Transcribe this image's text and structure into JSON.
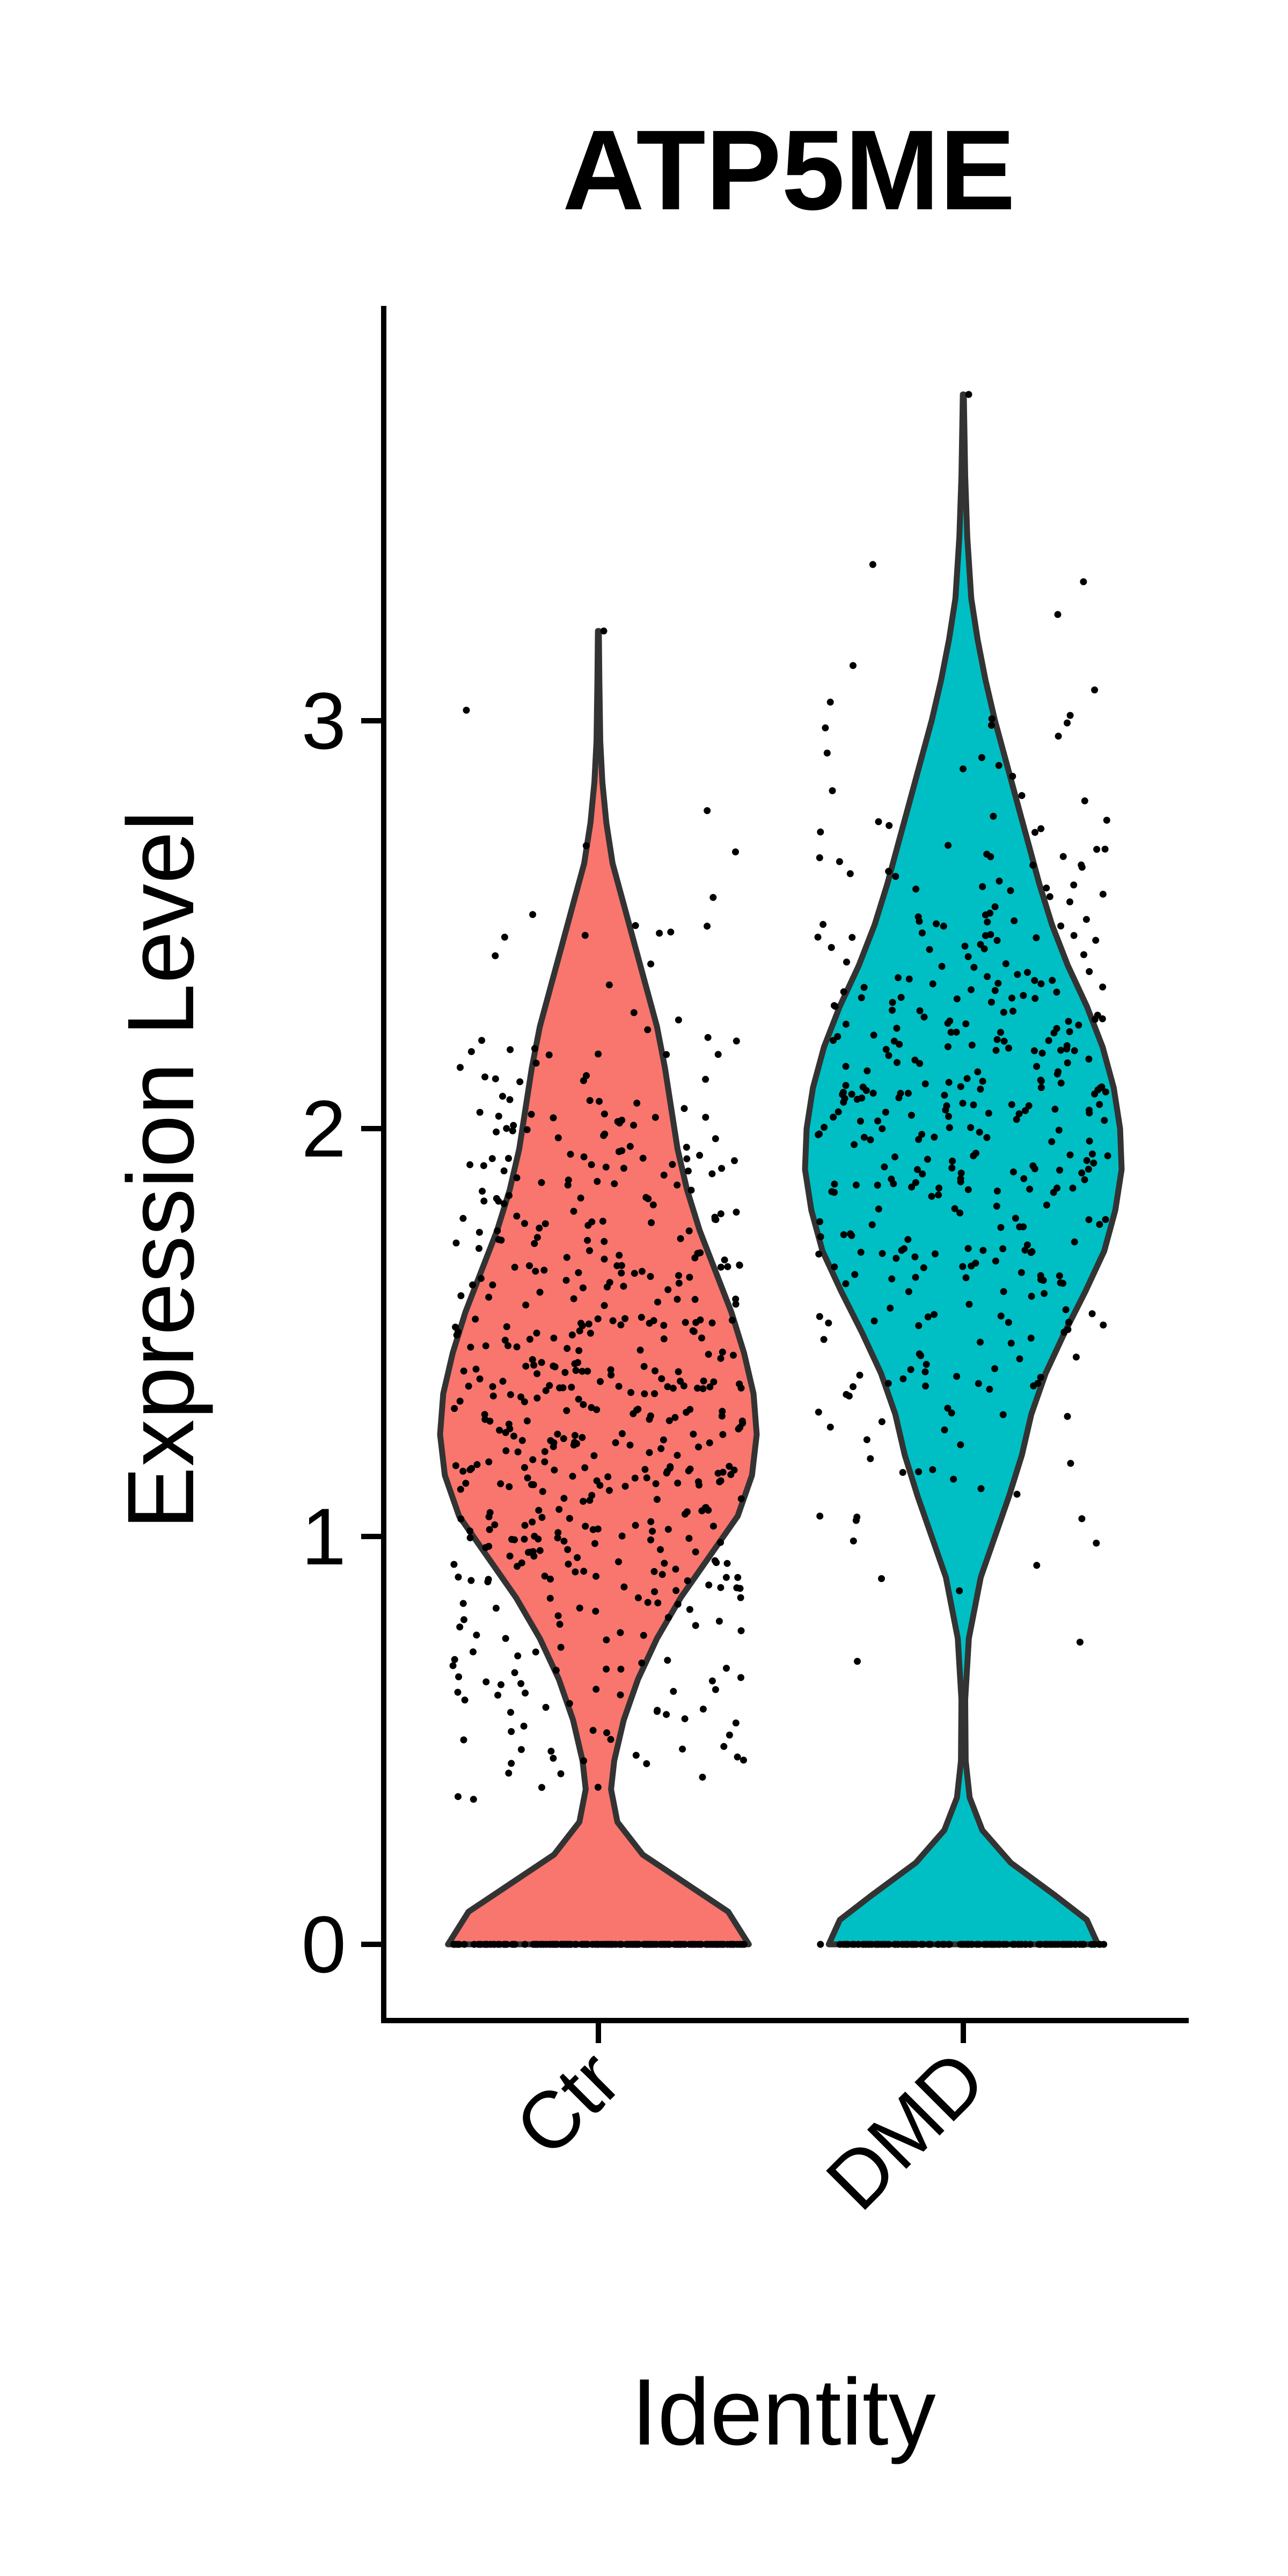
{
  "chart_data": {
    "type": "violin",
    "title": "ATP5ME",
    "xlabel": "Identity",
    "ylabel": "Expression Level",
    "categories": [
      "Ctr",
      "DMD"
    ],
    "yticks": [
      0,
      1,
      2,
      3
    ],
    "ylim": [
      -0.18,
      3.95
    ],
    "grid": false,
    "legend": "none",
    "jitter_points": true,
    "series": [
      {
        "category": "Ctr",
        "color": "#F8766D",
        "min": 0,
        "max": 3.22,
        "n_points": 700,
        "zero_fraction": 0.22,
        "density": [
          [
            0.0,
            0.95
          ],
          [
            0.08,
            0.82
          ],
          [
            0.15,
            0.55
          ],
          [
            0.22,
            0.28
          ],
          [
            0.3,
            0.12
          ],
          [
            0.38,
            0.08
          ],
          [
            0.45,
            0.1
          ],
          [
            0.55,
            0.16
          ],
          [
            0.65,
            0.25
          ],
          [
            0.75,
            0.37
          ],
          [
            0.85,
            0.52
          ],
          [
            0.95,
            0.7
          ],
          [
            1.05,
            0.88
          ],
          [
            1.15,
            0.97
          ],
          [
            1.25,
            1.0
          ],
          [
            1.35,
            0.98
          ],
          [
            1.45,
            0.92
          ],
          [
            1.55,
            0.84
          ],
          [
            1.65,
            0.74
          ],
          [
            1.75,
            0.64
          ],
          [
            1.85,
            0.56
          ],
          [
            1.95,
            0.5
          ],
          [
            2.05,
            0.46
          ],
          [
            2.15,
            0.42
          ],
          [
            2.25,
            0.37
          ],
          [
            2.35,
            0.3
          ],
          [
            2.45,
            0.23
          ],
          [
            2.55,
            0.16
          ],
          [
            2.65,
            0.09
          ],
          [
            2.75,
            0.05
          ],
          [
            2.85,
            0.025
          ],
          [
            2.95,
            0.012
          ],
          [
            3.1,
            0.006
          ],
          [
            3.22,
            0.003
          ]
        ]
      },
      {
        "category": "DMD",
        "color": "#00BFC4",
        "min": 0,
        "max": 3.8,
        "n_points": 520,
        "zero_fraction": 0.23,
        "density": [
          [
            0.0,
            0.85
          ],
          [
            0.06,
            0.78
          ],
          [
            0.12,
            0.58
          ],
          [
            0.2,
            0.3
          ],
          [
            0.28,
            0.12
          ],
          [
            0.36,
            0.04
          ],
          [
            0.45,
            0.015
          ],
          [
            0.6,
            0.012
          ],
          [
            0.75,
            0.035
          ],
          [
            0.9,
            0.11
          ],
          [
            1.0,
            0.2
          ],
          [
            1.1,
            0.29
          ],
          [
            1.2,
            0.37
          ],
          [
            1.3,
            0.43
          ],
          [
            1.4,
            0.52
          ],
          [
            1.5,
            0.64
          ],
          [
            1.6,
            0.77
          ],
          [
            1.7,
            0.89
          ],
          [
            1.8,
            0.96
          ],
          [
            1.9,
            1.0
          ],
          [
            2.0,
            0.99
          ],
          [
            2.1,
            0.95
          ],
          [
            2.2,
            0.88
          ],
          [
            2.3,
            0.78
          ],
          [
            2.4,
            0.66
          ],
          [
            2.5,
            0.56
          ],
          [
            2.6,
            0.48
          ],
          [
            2.7,
            0.41
          ],
          [
            2.8,
            0.34
          ],
          [
            2.9,
            0.27
          ],
          [
            3.0,
            0.2
          ],
          [
            3.1,
            0.14
          ],
          [
            3.2,
            0.09
          ],
          [
            3.3,
            0.05
          ],
          [
            3.45,
            0.025
          ],
          [
            3.6,
            0.012
          ],
          [
            3.8,
            0.003
          ]
        ]
      }
    ]
  }
}
